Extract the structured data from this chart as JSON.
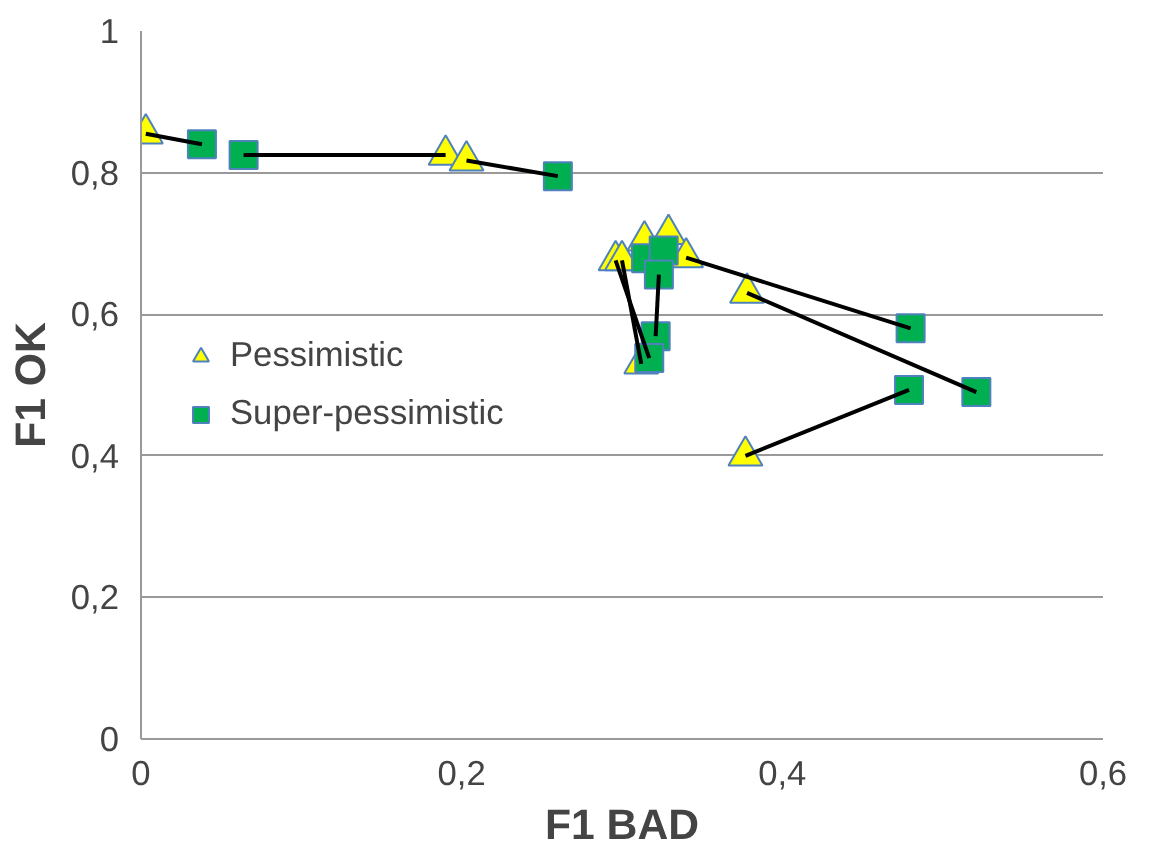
{
  "chart_data": {
    "type": "scatter",
    "xlabel": "F1 BAD",
    "ylabel": "F1 OK",
    "xlim": [
      0,
      0.6
    ],
    "ylim": [
      0,
      1
    ],
    "xticks": [
      0,
      {
        "value": 0.2,
        "label": "0,2"
      },
      {
        "value": 0.4,
        "label": "0,4"
      },
      {
        "value": 0.6,
        "label": "0,6"
      }
    ],
    "yticks": [
      0,
      {
        "value": 0.2,
        "label": "0,2"
      },
      {
        "value": 0.4,
        "label": "0,4"
      },
      {
        "value": 0.6,
        "label": "0,6"
      },
      {
        "value": 0.8,
        "label": "0,8"
      },
      1
    ],
    "grid": "y",
    "legend": "left",
    "series": [
      {
        "type": "line",
        "color": "#000000",
        "x": [
          0.003,
          0.038
        ],
        "values": [
          0.855,
          0.84
        ]
      },
      {
        "type": "line",
        "color": "#000000",
        "x": [
          0.064,
          0.19
        ],
        "values": [
          0.825,
          0.825
        ]
      },
      {
        "type": "line",
        "color": "#000000",
        "x": [
          0.203,
          0.26
        ],
        "values": [
          0.817,
          0.795
        ]
      },
      {
        "type": "line",
        "color": "#000000",
        "x": [
          0.296,
          0.317
        ],
        "values": [
          0.676,
          0.538
        ]
      },
      {
        "type": "line",
        "color": "#000000",
        "x": [
          0.3,
          0.312
        ],
        "values": [
          0.676,
          0.53
        ]
      },
      {
        "type": "line",
        "color": "#000000",
        "x": [
          0.323,
          0.321
        ],
        "values": [
          0.656,
          0.569
        ]
      },
      {
        "type": "line",
        "color": "#000000",
        "x": [
          0.34,
          0.48
        ],
        "values": [
          0.68,
          0.58
        ]
      },
      {
        "type": "line",
        "color": "#000000",
        "x": [
          0.378,
          0.521
        ],
        "values": [
          0.63,
          0.49
        ]
      },
      {
        "type": "line",
        "color": "#000000",
        "x": [
          0.377,
          0.479
        ],
        "values": [
          0.4,
          0.493
        ]
      },
      {
        "name": "Pessimistic",
        "color": "#ffff00",
        "marker": "triangle",
        "x": [
          0.003,
          0.19,
          0.203,
          0.296,
          0.3,
          0.314,
          0.329,
          0.34,
          0.312,
          0.378,
          0.377
        ],
        "values": [
          0.855,
          0.825,
          0.817,
          0.676,
          0.676,
          0.704,
          0.713,
          0.68,
          0.53,
          0.63,
          0.4
        ]
      },
      {
        "name": "Super-pessimistic",
        "color": "#00b050",
        "marker": "square",
        "x": [
          0.038,
          0.064,
          0.26,
          0.315,
          0.326,
          0.323,
          0.321,
          0.317,
          0.48,
          0.521,
          0.479
        ],
        "values": [
          0.84,
          0.825,
          0.795,
          0.679,
          0.69,
          0.656,
          0.569,
          0.538,
          0.58,
          0.49,
          0.493
        ]
      }
    ]
  }
}
